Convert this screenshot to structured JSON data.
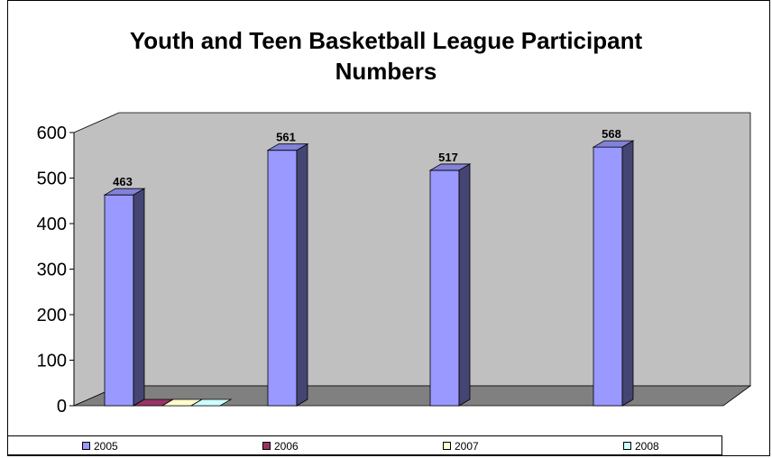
{
  "chart_data": {
    "type": "bar",
    "title": "Youth and Teen Basketball League Participant Numbers",
    "title_lines": [
      "Youth and Teen Basketball League Participant",
      "Numbers"
    ],
    "three_d": true,
    "categories": [
      "",
      "",
      "",
      ""
    ],
    "series": [
      {
        "name": "2005",
        "color": "#9999ff",
        "values": [
          463,
          561,
          517,
          568
        ]
      },
      {
        "name": "2006",
        "color": "#993366",
        "values": [
          0,
          null,
          null,
          null
        ]
      },
      {
        "name": "2007",
        "color": "#ffffcc",
        "values": [
          0,
          null,
          null,
          null
        ]
      },
      {
        "name": "2008",
        "color": "#ccffff",
        "values": [
          0,
          null,
          null,
          null
        ]
      }
    ],
    "data_labels": [
      "463",
      "561",
      "517",
      "568"
    ],
    "ylim": [
      0,
      600
    ],
    "yticks": [
      "0",
      "100",
      "200",
      "300",
      "400",
      "500",
      "600"
    ],
    "ytick_values": [
      0,
      100,
      200,
      300,
      400,
      500,
      600
    ],
    "grid": false,
    "wall_color": "#c0c0c0",
    "floor_color": "#808080",
    "legend_position": "bottom"
  }
}
